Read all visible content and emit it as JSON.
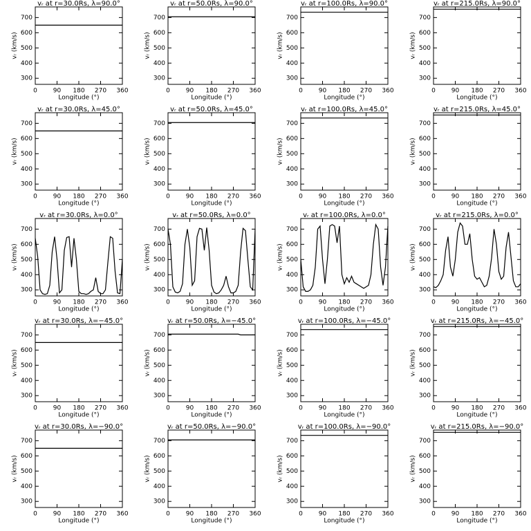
{
  "chart_data": [
    {
      "type": "line",
      "title": "vᵣ at r=30.0Rs, λ=90.0°",
      "xlabel": "Longitude (°)",
      "ylabel": "vᵣ (km/s)",
      "x": [
        0,
        360
      ],
      "values": [
        650,
        650
      ],
      "color": "#000000",
      "xlim": [
        0,
        360
      ],
      "ylim": [
        260,
        770
      ],
      "xticks": [
        0,
        90,
        180,
        270,
        360
      ],
      "yticks": [
        300,
        400,
        500,
        600,
        700
      ]
    },
    {
      "type": "line",
      "title": "vᵣ at r=50.0Rs, λ=90.0°",
      "xlabel": "Longitude (°)",
      "ylabel": "vᵣ (km/s)",
      "x": [
        0,
        360
      ],
      "values": [
        705,
        705
      ],
      "color": "#000000",
      "xlim": [
        0,
        360
      ],
      "ylim": [
        260,
        770
      ],
      "xticks": [
        0,
        90,
        180,
        270,
        360
      ],
      "yticks": [
        300,
        400,
        500,
        600,
        700
      ]
    },
    {
      "type": "line",
      "title": "vᵣ at r=100.0Rs, λ=90.0°",
      "xlabel": "Longitude (°)",
      "ylabel": "vᵣ (km/s)",
      "x": [
        0,
        360
      ],
      "values": [
        735,
        735
      ],
      "color": "#000000",
      "xlim": [
        0,
        360
      ],
      "ylim": [
        260,
        770
      ],
      "xticks": [
        0,
        90,
        180,
        270,
        360
      ],
      "yticks": [
        300,
        400,
        500,
        600,
        700
      ]
    },
    {
      "type": "line",
      "title": "vᵣ at r=215.0Rs, λ=90.0°",
      "xlabel": "Longitude (°)",
      "ylabel": "vᵣ (km/s)",
      "x": [
        0,
        360
      ],
      "values": [
        755,
        755
      ],
      "color": "#000000",
      "xlim": [
        0,
        360
      ],
      "ylim": [
        260,
        770
      ],
      "xticks": [
        0,
        90,
        180,
        270,
        360
      ],
      "yticks": [
        300,
        400,
        500,
        600,
        700
      ]
    },
    {
      "type": "line",
      "title": "vᵣ at r=30.0Rs, λ=45.0°",
      "xlabel": "Longitude (°)",
      "ylabel": "vᵣ (km/s)",
      "x": [
        0,
        360
      ],
      "values": [
        650,
        650
      ],
      "color": "#000000",
      "xlim": [
        0,
        360
      ],
      "ylim": [
        260,
        770
      ],
      "xticks": [
        0,
        90,
        180,
        270,
        360
      ],
      "yticks": [
        300,
        400,
        500,
        600,
        700
      ]
    },
    {
      "type": "line",
      "title": "vᵣ at r=50.0Rs, λ=45.0°",
      "xlabel": "Longitude (°)",
      "ylabel": "vᵣ (km/s)",
      "x": [
        0,
        360
      ],
      "values": [
        705,
        705
      ],
      "color": "#000000",
      "xlim": [
        0,
        360
      ],
      "ylim": [
        260,
        770
      ],
      "xticks": [
        0,
        90,
        180,
        270,
        360
      ],
      "yticks": [
        300,
        400,
        500,
        600,
        700
      ]
    },
    {
      "type": "line",
      "title": "vᵣ at r=100.0Rs, λ=45.0°",
      "xlabel": "Longitude (°)",
      "ylabel": "vᵣ (km/s)",
      "x": [
        0,
        360
      ],
      "values": [
        735,
        735
      ],
      "color": "#000000",
      "xlim": [
        0,
        360
      ],
      "ylim": [
        260,
        770
      ],
      "xticks": [
        0,
        90,
        180,
        270,
        360
      ],
      "yticks": [
        300,
        400,
        500,
        600,
        700
      ]
    },
    {
      "type": "line",
      "title": "vᵣ at r=215.0Rs, λ=45.0°",
      "xlabel": "Longitude (°)",
      "ylabel": "vᵣ (km/s)",
      "x": [
        0,
        360
      ],
      "values": [
        755,
        755
      ],
      "color": "#000000",
      "xlim": [
        0,
        360
      ],
      "ylim": [
        260,
        770
      ],
      "xticks": [
        0,
        90,
        180,
        270,
        360
      ],
      "yticks": [
        300,
        400,
        500,
        600,
        700
      ]
    },
    {
      "type": "line",
      "title": "vᵣ at r=30.0Rs, λ=0.0°",
      "xlabel": "Longitude (°)",
      "ylabel": "vᵣ (km/s)",
      "x": [
        0,
        10,
        20,
        30,
        40,
        50,
        60,
        70,
        80,
        90,
        100,
        110,
        120,
        130,
        140,
        150,
        160,
        170,
        180,
        190,
        200,
        210,
        220,
        230,
        240,
        250,
        260,
        270,
        280,
        290,
        300,
        310,
        320,
        330,
        340,
        350,
        360
      ],
      "values": [
        640,
        520,
        300,
        275,
        270,
        275,
        330,
        550,
        650,
        500,
        280,
        300,
        560,
        645,
        650,
        450,
        640,
        500,
        290,
        275,
        275,
        270,
        275,
        290,
        300,
        380,
        290,
        275,
        275,
        300,
        480,
        650,
        640,
        420,
        280,
        275,
        500
      ],
      "color": "#000000",
      "xlim": [
        0,
        360
      ],
      "ylim": [
        260,
        770
      ],
      "xticks": [
        0,
        90,
        180,
        270,
        360
      ],
      "yticks": [
        300,
        400,
        500,
        600,
        700
      ]
    },
    {
      "type": "line",
      "title": "vᵣ at r=50.0Rs, λ=0.0°",
      "xlabel": "Longitude (°)",
      "ylabel": "vᵣ (km/s)",
      "x": [
        0,
        10,
        20,
        30,
        40,
        50,
        60,
        70,
        80,
        90,
        100,
        110,
        120,
        130,
        140,
        150,
        160,
        170,
        180,
        190,
        200,
        210,
        220,
        230,
        240,
        250,
        260,
        270,
        280,
        290,
        300,
        310,
        320,
        330,
        340,
        350,
        360
      ],
      "values": [
        700,
        600,
        320,
        285,
        280,
        290,
        340,
        600,
        700,
        580,
        330,
        360,
        650,
        705,
        700,
        560,
        710,
        560,
        330,
        285,
        275,
        280,
        300,
        330,
        390,
        320,
        280,
        280,
        290,
        330,
        550,
        705,
        690,
        500,
        320,
        300,
        700
      ],
      "color": "#000000",
      "xlim": [
        0,
        360
      ],
      "ylim": [
        260,
        770
      ],
      "xticks": [
        0,
        90,
        180,
        270,
        360
      ],
      "yticks": [
        300,
        400,
        500,
        600,
        700
      ]
    },
    {
      "type": "line",
      "title": "vᵣ at r=100.0Rs, λ=0.0°",
      "xlabel": "Longitude (°)",
      "ylabel": "vᵣ (km/s)",
      "x": [
        0,
        10,
        20,
        30,
        40,
        50,
        60,
        70,
        80,
        90,
        100,
        110,
        120,
        130,
        140,
        150,
        160,
        170,
        180,
        190,
        200,
        210,
        220,
        230,
        240,
        250,
        260,
        270,
        280,
        290,
        300,
        310,
        320,
        330,
        340,
        350,
        360
      ],
      "values": [
        500,
        320,
        290,
        290,
        300,
        330,
        450,
        700,
        720,
        500,
        340,
        500,
        720,
        730,
        720,
        610,
        720,
        400,
        340,
        380,
        350,
        390,
        350,
        340,
        330,
        320,
        310,
        320,
        330,
        400,
        600,
        730,
        700,
        450,
        330,
        450,
        720
      ],
      "color": "#000000",
      "xlim": [
        0,
        360
      ],
      "ylim": [
        260,
        770
      ],
      "xticks": [
        0,
        90,
        180,
        270,
        360
      ],
      "yticks": [
        300,
        400,
        500,
        600,
        700
      ]
    },
    {
      "type": "line",
      "title": "vᵣ at r=215.0Rs, λ=0.0°",
      "xlabel": "Longitude (°)",
      "ylabel": "vᵣ (km/s)",
      "x": [
        0,
        10,
        20,
        30,
        40,
        50,
        60,
        70,
        80,
        90,
        100,
        110,
        120,
        130,
        140,
        150,
        160,
        170,
        180,
        190,
        200,
        210,
        220,
        230,
        240,
        250,
        260,
        270,
        280,
        290,
        300,
        310,
        320,
        330,
        340,
        350,
        360
      ],
      "values": [
        320,
        315,
        330,
        360,
        400,
        560,
        650,
        450,
        390,
        500,
        680,
        740,
        720,
        600,
        600,
        670,
        500,
        390,
        370,
        380,
        350,
        320,
        330,
        390,
        510,
        700,
        600,
        420,
        370,
        390,
        580,
        680,
        520,
        360,
        320,
        320,
        340
      ],
      "color": "#000000",
      "xlim": [
        0,
        360
      ],
      "ylim": [
        260,
        770
      ],
      "xticks": [
        0,
        90,
        180,
        270,
        360
      ],
      "yticks": [
        300,
        400,
        500,
        600,
        700
      ]
    },
    {
      "type": "line",
      "title": "vᵣ at r=30.0Rs, λ=−45.0°",
      "xlabel": "Longitude (°)",
      "ylabel": "vᵣ (km/s)",
      "x": [
        0,
        360
      ],
      "values": [
        650,
        650
      ],
      "color": "#000000",
      "xlim": [
        0,
        360
      ],
      "ylim": [
        260,
        770
      ],
      "xticks": [
        0,
        90,
        180,
        270,
        360
      ],
      "yticks": [
        300,
        400,
        500,
        600,
        700
      ]
    },
    {
      "type": "line",
      "title": "vᵣ at r=50.0Rs, λ=−45.0°",
      "xlabel": "Longitude (°)",
      "ylabel": "vᵣ (km/s)",
      "x": [
        0,
        290,
        300,
        360
      ],
      "values": [
        705,
        705,
        700,
        700
      ],
      "color": "#000000",
      "xlim": [
        0,
        360
      ],
      "ylim": [
        260,
        770
      ],
      "xticks": [
        0,
        90,
        180,
        270,
        360
      ],
      "yticks": [
        300,
        400,
        500,
        600,
        700
      ]
    },
    {
      "type": "line",
      "title": "vᵣ at r=100.0Rs, λ=−45.0°",
      "xlabel": "Longitude (°)",
      "ylabel": "vᵣ (km/s)",
      "x": [
        0,
        360
      ],
      "values": [
        735,
        735
      ],
      "color": "#000000",
      "xlim": [
        0,
        360
      ],
      "ylim": [
        260,
        770
      ],
      "xticks": [
        0,
        90,
        180,
        270,
        360
      ],
      "yticks": [
        300,
        400,
        500,
        600,
        700
      ]
    },
    {
      "type": "line",
      "title": "vᵣ at r=215.0Rs, λ=−45.0°",
      "xlabel": "Longitude (°)",
      "ylabel": "vᵣ (km/s)",
      "x": [
        0,
        360
      ],
      "values": [
        755,
        755
      ],
      "color": "#000000",
      "xlim": [
        0,
        360
      ],
      "ylim": [
        260,
        770
      ],
      "xticks": [
        0,
        90,
        180,
        270,
        360
      ],
      "yticks": [
        300,
        400,
        500,
        600,
        700
      ]
    },
    {
      "type": "line",
      "title": "vᵣ at r=30.0Rs, λ=−90.0°",
      "xlabel": "Longitude (°)",
      "ylabel": "vᵣ (km/s)",
      "x": [
        0,
        360
      ],
      "values": [
        650,
        650
      ],
      "color": "#000000",
      "xlim": [
        0,
        360
      ],
      "ylim": [
        260,
        770
      ],
      "xticks": [
        0,
        90,
        180,
        270,
        360
      ],
      "yticks": [
        300,
        400,
        500,
        600,
        700
      ]
    },
    {
      "type": "line",
      "title": "vᵣ at r=50.0Rs, λ=−90.0°",
      "xlabel": "Longitude (°)",
      "ylabel": "vᵣ (km/s)",
      "x": [
        0,
        360
      ],
      "values": [
        705,
        705
      ],
      "color": "#000000",
      "xlim": [
        0,
        360
      ],
      "ylim": [
        260,
        770
      ],
      "xticks": [
        0,
        90,
        180,
        270,
        360
      ],
      "yticks": [
        300,
        400,
        500,
        600,
        700
      ]
    },
    {
      "type": "line",
      "title": "vᵣ at r=100.0Rs, λ=−90.0°",
      "xlabel": "Longitude (°)",
      "ylabel": "vᵣ (km/s)",
      "x": [
        0,
        360
      ],
      "values": [
        735,
        735
      ],
      "color": "#000000",
      "xlim": [
        0,
        360
      ],
      "ylim": [
        260,
        770
      ],
      "xticks": [
        0,
        90,
        180,
        270,
        360
      ],
      "yticks": [
        300,
        400,
        500,
        600,
        700
      ]
    },
    {
      "type": "line",
      "title": "vᵣ at r=215.0Rs, λ=−90.0°",
      "xlabel": "Longitude (°)",
      "ylabel": "vᵣ (km/s)",
      "x": [
        0,
        360
      ],
      "values": [
        755,
        755
      ],
      "color": "#000000",
      "xlim": [
        0,
        360
      ],
      "ylim": [
        260,
        770
      ],
      "xticks": [
        0,
        90,
        180,
        270,
        360
      ],
      "yticks": [
        300,
        400,
        500,
        600,
        700
      ]
    }
  ]
}
